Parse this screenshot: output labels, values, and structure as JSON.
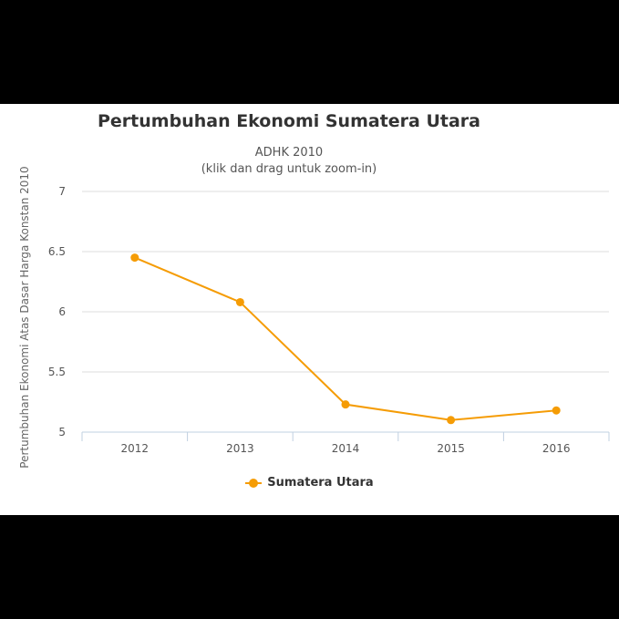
{
  "chart_data": {
    "type": "line",
    "title": "Pertumbuhan Ekonomi Sumatera Utara",
    "subtitle": [
      "ADHK 2010",
      "(klik dan drag untuk zoom-in)"
    ],
    "ylabel": "Pertumbuhan Ekonomi Atas Dasar Harga Konstan 2010",
    "xlabel": "",
    "categories": [
      "2012",
      "2013",
      "2014",
      "2015",
      "2016"
    ],
    "ylim": [
      5,
      7
    ],
    "yticks": [
      "5",
      "5.5",
      "6",
      "6.5",
      "7"
    ],
    "grid": true,
    "legend_position": "bottom-center",
    "series": [
      {
        "name": "Sumatera Utara",
        "color": "#f59c05",
        "values": [
          6.45,
          6.08,
          5.23,
          5.1,
          5.18
        ]
      }
    ]
  }
}
